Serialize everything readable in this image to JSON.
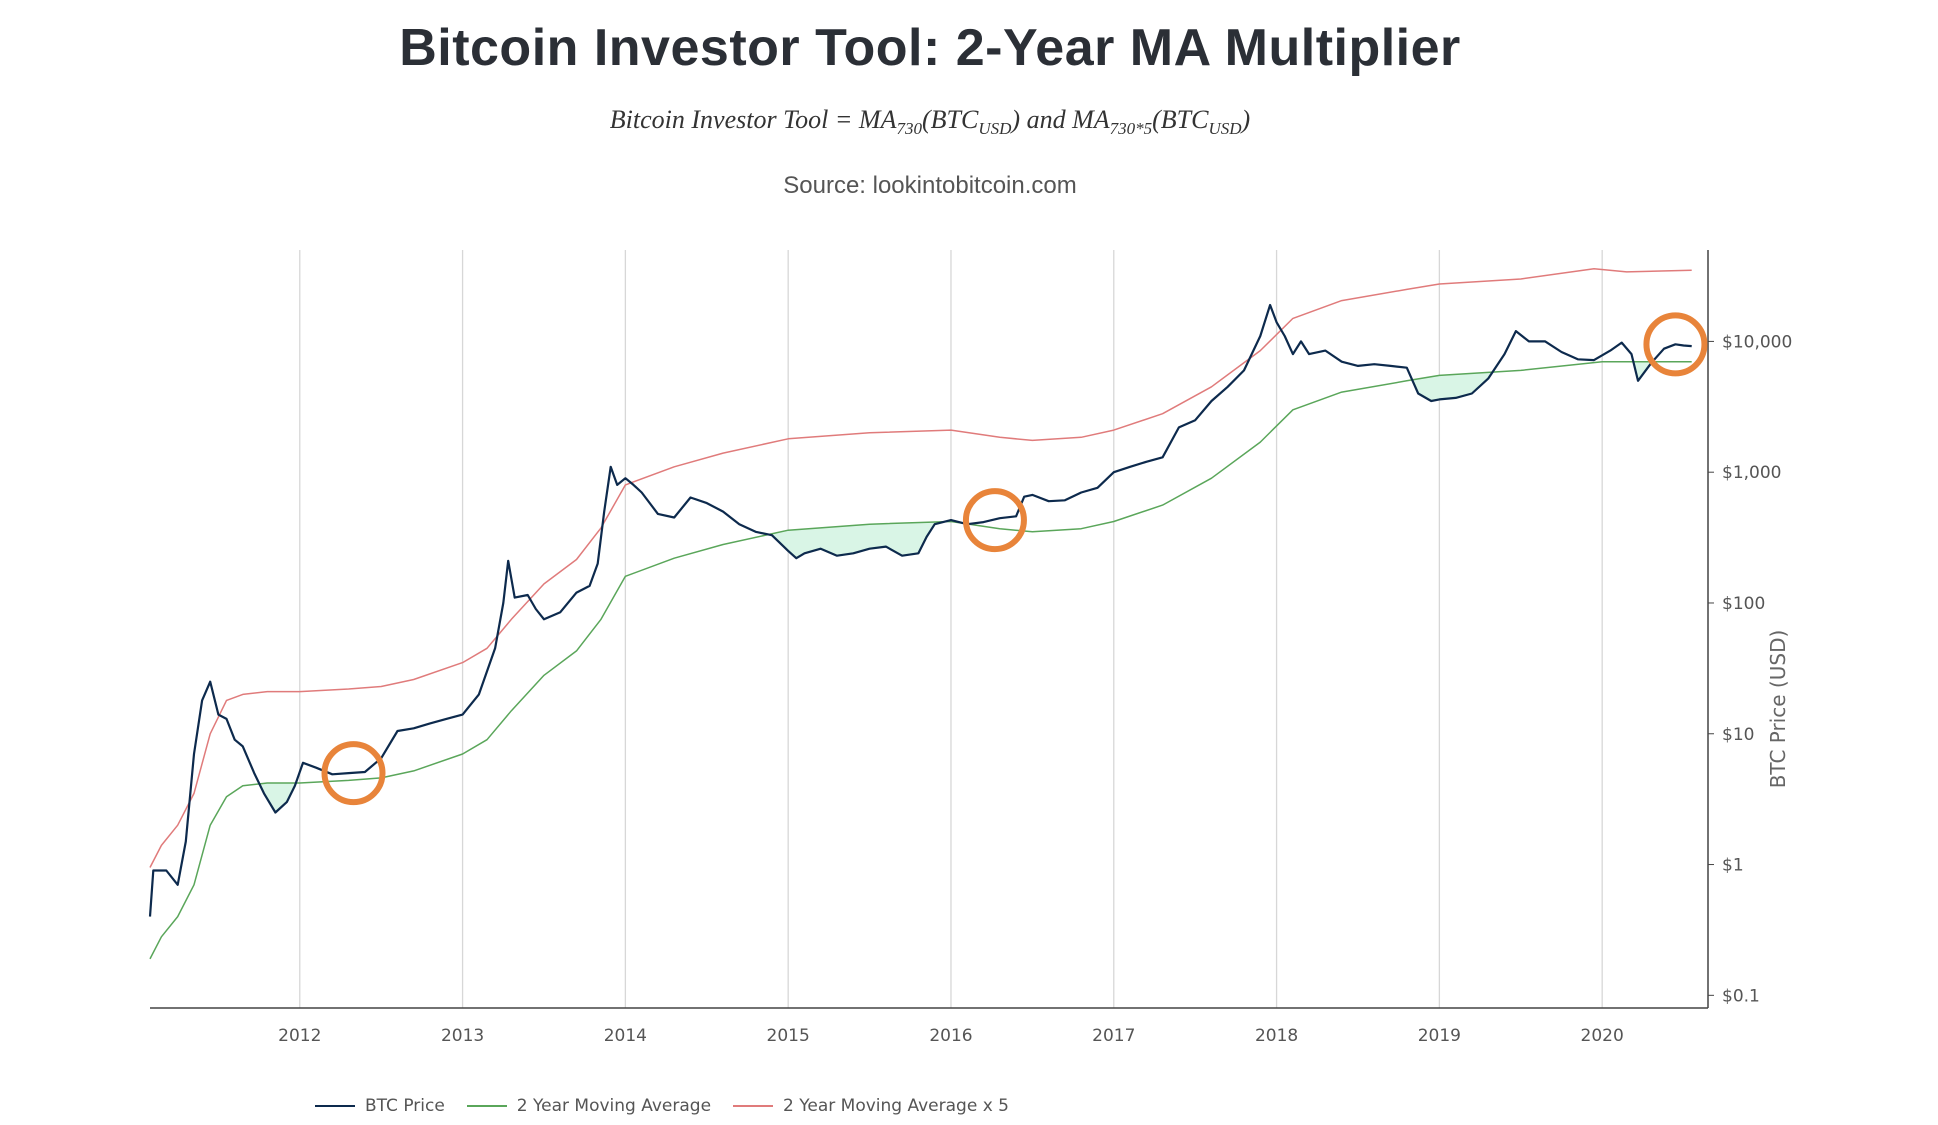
{
  "page": {
    "title": "Bitcoin Investor Tool: 2-Year MA Multiplier",
    "formula": {
      "lhs": "Bitcoin Investor Tool",
      "ma1": "MA",
      "sub1": "730",
      "arg1": "BTC",
      "argsub1": "USD",
      "and": "and",
      "ma2": "MA",
      "sub2": "730*5",
      "arg2": "BTC",
      "argsub2": "USD"
    },
    "source": "Source: lookintobitcoin.com"
  },
  "colors": {
    "btc": "#0d2a4d",
    "ma": "#5aa65a",
    "ma5": "#e07b7b",
    "fill": "#d9f5e6",
    "circle": "#e8843a",
    "grid": "#d7d7d7"
  },
  "chart_data": {
    "type": "line",
    "scale": "log",
    "ylabel": "BTC Price (USD)",
    "xlim": [
      2011.08,
      2020.65
    ],
    "ylim": [
      0.08,
      50000
    ],
    "x_ticks": [
      2012,
      2013,
      2014,
      2015,
      2016,
      2017,
      2018,
      2019,
      2020
    ],
    "x_tick_labels": [
      "2012",
      "2013",
      "2014",
      "2015",
      "2016",
      "2017",
      "2018",
      "2019",
      "2020"
    ],
    "y_ticks": [
      0.1,
      1,
      10,
      100,
      1000,
      10000
    ],
    "y_tick_labels": [
      "$0.1",
      "$1",
      "$10",
      "$100",
      "$1,000",
      "$10,000"
    ],
    "series": [
      {
        "name": "BTC Price",
        "color": "#0d2a4d",
        "points": [
          [
            2011.08,
            0.4
          ],
          [
            2011.1,
            0.9
          ],
          [
            2011.18,
            0.9
          ],
          [
            2011.25,
            0.7
          ],
          [
            2011.3,
            1.5
          ],
          [
            2011.35,
            7
          ],
          [
            2011.4,
            18
          ],
          [
            2011.45,
            25
          ],
          [
            2011.5,
            14
          ],
          [
            2011.55,
            13
          ],
          [
            2011.6,
            9
          ],
          [
            2011.65,
            8
          ],
          [
            2011.72,
            5
          ],
          [
            2011.78,
            3.5
          ],
          [
            2011.85,
            2.5
          ],
          [
            2011.92,
            3
          ],
          [
            2011.97,
            4
          ],
          [
            2012.02,
            6
          ],
          [
            2012.1,
            5.5
          ],
          [
            2012.2,
            4.9
          ],
          [
            2012.3,
            5.0
          ],
          [
            2012.4,
            5.1
          ],
          [
            2012.5,
            6.5
          ],
          [
            2012.6,
            10.5
          ],
          [
            2012.7,
            11
          ],
          [
            2012.8,
            12
          ],
          [
            2012.9,
            13
          ],
          [
            2013.0,
            14
          ],
          [
            2013.1,
            20
          ],
          [
            2013.2,
            45
          ],
          [
            2013.25,
            100
          ],
          [
            2013.28,
            210
          ],
          [
            2013.32,
            110
          ],
          [
            2013.4,
            115
          ],
          [
            2013.45,
            90
          ],
          [
            2013.5,
            75
          ],
          [
            2013.6,
            85
          ],
          [
            2013.7,
            120
          ],
          [
            2013.78,
            135
          ],
          [
            2013.83,
            200
          ],
          [
            2013.87,
            500
          ],
          [
            2013.91,
            1100
          ],
          [
            2013.95,
            800
          ],
          [
            2014.0,
            900
          ],
          [
            2014.05,
            800
          ],
          [
            2014.1,
            700
          ],
          [
            2014.2,
            480
          ],
          [
            2014.3,
            450
          ],
          [
            2014.4,
            640
          ],
          [
            2014.5,
            580
          ],
          [
            2014.6,
            500
          ],
          [
            2014.7,
            400
          ],
          [
            2014.8,
            350
          ],
          [
            2014.9,
            330
          ],
          [
            2015.0,
            250
          ],
          [
            2015.05,
            220
          ],
          [
            2015.1,
            240
          ],
          [
            2015.2,
            260
          ],
          [
            2015.3,
            230
          ],
          [
            2015.4,
            240
          ],
          [
            2015.5,
            260
          ],
          [
            2015.6,
            270
          ],
          [
            2015.7,
            230
          ],
          [
            2015.8,
            240
          ],
          [
            2015.85,
            320
          ],
          [
            2015.9,
            400
          ],
          [
            2016.0,
            430
          ],
          [
            2016.1,
            400
          ],
          [
            2016.2,
            415
          ],
          [
            2016.3,
            445
          ],
          [
            2016.4,
            460
          ],
          [
            2016.45,
            650
          ],
          [
            2016.5,
            670
          ],
          [
            2016.6,
            600
          ],
          [
            2016.7,
            610
          ],
          [
            2016.8,
            700
          ],
          [
            2016.9,
            760
          ],
          [
            2017.0,
            1000
          ],
          [
            2017.1,
            1100
          ],
          [
            2017.2,
            1200
          ],
          [
            2017.3,
            1300
          ],
          [
            2017.4,
            2200
          ],
          [
            2017.5,
            2500
          ],
          [
            2017.6,
            3500
          ],
          [
            2017.7,
            4500
          ],
          [
            2017.8,
            6000
          ],
          [
            2017.9,
            11000
          ],
          [
            2017.96,
            19000
          ],
          [
            2018.0,
            14000
          ],
          [
            2018.05,
            11000
          ],
          [
            2018.1,
            8000
          ],
          [
            2018.15,
            10000
          ],
          [
            2018.2,
            8000
          ],
          [
            2018.3,
            8500
          ],
          [
            2018.4,
            7000
          ],
          [
            2018.5,
            6500
          ],
          [
            2018.6,
            6700
          ],
          [
            2018.7,
            6500
          ],
          [
            2018.8,
            6300
          ],
          [
            2018.87,
            4000
          ],
          [
            2018.95,
            3500
          ],
          [
            2019.0,
            3600
          ],
          [
            2019.1,
            3700
          ],
          [
            2019.2,
            4000
          ],
          [
            2019.3,
            5200
          ],
          [
            2019.4,
            8000
          ],
          [
            2019.47,
            12000
          ],
          [
            2019.55,
            10000
          ],
          [
            2019.65,
            10000
          ],
          [
            2019.75,
            8300
          ],
          [
            2019.85,
            7300
          ],
          [
            2019.95,
            7200
          ],
          [
            2020.05,
            8500
          ],
          [
            2020.12,
            9800
          ],
          [
            2020.18,
            8000
          ],
          [
            2020.22,
            5000
          ],
          [
            2020.3,
            6800
          ],
          [
            2020.38,
            8800
          ],
          [
            2020.45,
            9500
          ],
          [
            2020.5,
            9300
          ],
          [
            2020.55,
            9200
          ]
        ]
      },
      {
        "name": "2 Year Moving Average",
        "color": "#5aa65a",
        "points": [
          [
            2011.08,
            0.19
          ],
          [
            2011.15,
            0.28
          ],
          [
            2011.25,
            0.4
          ],
          [
            2011.35,
            0.7
          ],
          [
            2011.45,
            2.0
          ],
          [
            2011.55,
            3.3
          ],
          [
            2011.65,
            4.0
          ],
          [
            2011.8,
            4.2
          ],
          [
            2012.0,
            4.2
          ],
          [
            2012.3,
            4.4
          ],
          [
            2012.5,
            4.6
          ],
          [
            2012.7,
            5.2
          ],
          [
            2013.0,
            7.0
          ],
          [
            2013.15,
            9.0
          ],
          [
            2013.3,
            15
          ],
          [
            2013.5,
            28
          ],
          [
            2013.7,
            43
          ],
          [
            2013.85,
            75
          ],
          [
            2014.0,
            160
          ],
          [
            2014.3,
            220
          ],
          [
            2014.6,
            280
          ],
          [
            2015.0,
            360
          ],
          [
            2015.5,
            400
          ],
          [
            2016.0,
            420
          ],
          [
            2016.3,
            370
          ],
          [
            2016.5,
            350
          ],
          [
            2016.8,
            370
          ],
          [
            2017.0,
            420
          ],
          [
            2017.3,
            560
          ],
          [
            2017.6,
            900
          ],
          [
            2017.9,
            1700
          ],
          [
            2018.1,
            3000
          ],
          [
            2018.4,
            4100
          ],
          [
            2018.8,
            5000
          ],
          [
            2019.0,
            5500
          ],
          [
            2019.5,
            6000
          ],
          [
            2020.0,
            7000
          ],
          [
            2020.55,
            7000
          ]
        ]
      },
      {
        "name": "2 Year Moving Average x 5",
        "color": "#e07b7b",
        "points": [
          [
            2011.08,
            0.95
          ],
          [
            2011.15,
            1.4
          ],
          [
            2011.25,
            2.0
          ],
          [
            2011.35,
            3.5
          ],
          [
            2011.45,
            10
          ],
          [
            2011.55,
            18
          ],
          [
            2011.65,
            20
          ],
          [
            2011.8,
            21
          ],
          [
            2012.0,
            21
          ],
          [
            2012.3,
            22
          ],
          [
            2012.5,
            23
          ],
          [
            2012.7,
            26
          ],
          [
            2013.0,
            35
          ],
          [
            2013.15,
            45
          ],
          [
            2013.3,
            75
          ],
          [
            2013.5,
            140
          ],
          [
            2013.7,
            215
          ],
          [
            2013.85,
            375
          ],
          [
            2014.0,
            800
          ],
          [
            2014.3,
            1100
          ],
          [
            2014.6,
            1400
          ],
          [
            2015.0,
            1800
          ],
          [
            2015.5,
            2000
          ],
          [
            2016.0,
            2100
          ],
          [
            2016.3,
            1850
          ],
          [
            2016.5,
            1750
          ],
          [
            2016.8,
            1850
          ],
          [
            2017.0,
            2100
          ],
          [
            2017.3,
            2800
          ],
          [
            2017.6,
            4500
          ],
          [
            2017.9,
            8500
          ],
          [
            2018.1,
            15000
          ],
          [
            2018.4,
            20500
          ],
          [
            2018.8,
            25000
          ],
          [
            2019.0,
            27500
          ],
          [
            2019.5,
            30000
          ],
          [
            2019.95,
            36000
          ],
          [
            2020.15,
            34000
          ],
          [
            2020.55,
            35000
          ]
        ]
      }
    ],
    "annotations": [
      {
        "type": "circle",
        "x": 2012.33,
        "y": 5.0
      },
      {
        "type": "circle",
        "x": 2016.27,
        "y": 430
      },
      {
        "type": "circle",
        "x": 2020.45,
        "y": 9500
      }
    ]
  },
  "legend": [
    {
      "label": "BTC Price",
      "color": "#0d2a4d"
    },
    {
      "label": "2 Year Moving Average",
      "color": "#5aa65a"
    },
    {
      "label": "2 Year Moving Average x 5",
      "color": "#e07b7b"
    }
  ]
}
